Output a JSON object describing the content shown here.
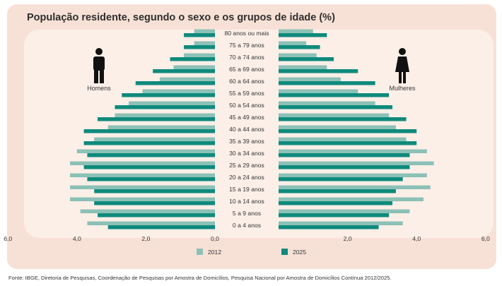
{
  "title": "População residente, segundo o sexo e os grupos de idade (%)",
  "source": "Fonte: IBGE, Diretoria de Pesquisas, Coordenação de Pesquisas por Amostra de Domicílios, Pesquisa Nacional por Amostra de Domicílios Contínua 2012/2025.",
  "colors": {
    "s2012": "#8cc1b7",
    "s2025": "#0e8a7c",
    "frame": "#f7e1d6",
    "plot": "#fcefe8"
  },
  "icons": {
    "left": "male-person-icon",
    "right": "female-person-icon"
  },
  "chart_data": {
    "type": "bar",
    "orientation": "horizontal-population-pyramid",
    "title": "População residente, segundo o sexo e os grupos de idade (%)",
    "categories": [
      "80 anos ou mais",
      "75 a 79 anos",
      "70 a 74 anos",
      "65 a 69 anos",
      "60 a 64 anos",
      "55 a 59 anos",
      "50 a 54 anos",
      "45 a 49 anos",
      "40 a 44 anos",
      "35 a 39 anos",
      "30 a 34 anos",
      "25 a 29 anos",
      "20 a 24 anos",
      "15 a 19 anos",
      "10 a 14 anos",
      "5 a 9 anos",
      "0 a 4 anos"
    ],
    "left_label": "Homens",
    "right_label": "Mulheres",
    "xlim": [
      -6,
      6
    ],
    "xticks": [
      "6,0",
      "4,0",
      "2,0",
      "0,0",
      "2,0",
      "4,0",
      "6,0"
    ],
    "series": [
      {
        "name": "2012",
        "color": "#8cc1b7",
        "homens": [
          0.6,
          0.6,
          0.9,
          1.2,
          1.6,
          2.1,
          2.5,
          2.9,
          3.1,
          3.5,
          4.0,
          4.2,
          4.2,
          4.2,
          4.2,
          3.9,
          3.7
        ],
        "mulheres": [
          1.0,
          0.8,
          1.1,
          1.4,
          1.8,
          2.3,
          2.8,
          3.2,
          3.4,
          3.7,
          4.3,
          4.5,
          4.3,
          4.4,
          4.2,
          3.8,
          3.6
        ]
      },
      {
        "name": "2025",
        "color": "#0e8a7c",
        "homens": [
          0.9,
          0.9,
          1.3,
          1.8,
          2.3,
          2.7,
          2.9,
          3.4,
          3.8,
          3.8,
          3.7,
          3.8,
          3.7,
          3.5,
          3.5,
          3.4,
          3.1
        ],
        "mulheres": [
          1.4,
          1.2,
          1.6,
          2.3,
          2.8,
          3.2,
          3.3,
          3.7,
          4.0,
          4.0,
          3.8,
          3.8,
          3.6,
          3.4,
          3.3,
          3.2,
          2.9
        ]
      }
    ],
    "legend": "bottom-center",
    "grid": false
  }
}
